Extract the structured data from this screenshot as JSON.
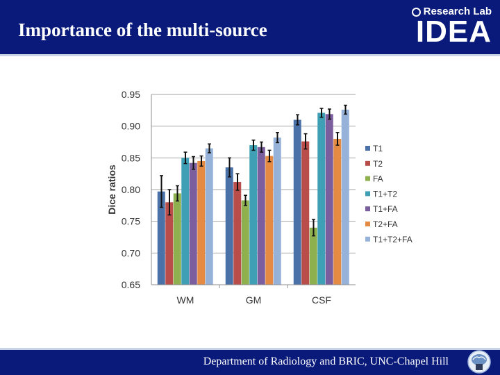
{
  "slide": {
    "title": "Importance of the multi-source",
    "logo_top": "Research Lab",
    "logo_main": "IDEA",
    "footer": "Department of Radiology and BRIC, UNC-Chapel Hill"
  },
  "colors": {
    "header_bg": "#0a1a7a",
    "T1": "#4a72a8",
    "T2": "#b84d4a",
    "FA": "#8fb04f",
    "T1+T2": "#3fa0b5",
    "T1+FA": "#7b5e9e",
    "T2+FA": "#e48a43",
    "T1+T2+FA": "#97b2d8"
  },
  "chart_data": {
    "type": "bar",
    "ylabel": "Dice ratios",
    "xlabel": "",
    "ylim": [
      0.65,
      0.95
    ],
    "yticks": [
      "0.95",
      "0.90",
      "0.85",
      "0.80",
      "0.75",
      "0.70",
      "0.65"
    ],
    "grid": true,
    "legend_position": "right",
    "categories": [
      "WM",
      "GM",
      "CSF"
    ],
    "series": [
      {
        "name": "T1",
        "values": [
          0.797,
          0.835,
          0.91
        ],
        "errors": [
          0.025,
          0.015,
          0.008
        ]
      },
      {
        "name": "T2",
        "values": [
          0.78,
          0.812,
          0.876
        ],
        "errors": [
          0.02,
          0.013,
          0.012
        ]
      },
      {
        "name": "FA",
        "values": [
          0.794,
          0.783,
          0.74
        ],
        "errors": [
          0.012,
          0.008,
          0.013
        ]
      },
      {
        "name": "T1+T2",
        "values": [
          0.85,
          0.87,
          0.921
        ],
        "errors": [
          0.009,
          0.008,
          0.007
        ]
      },
      {
        "name": "T1+FA",
        "values": [
          0.842,
          0.867,
          0.919
        ],
        "errors": [
          0.01,
          0.008,
          0.008
        ]
      },
      {
        "name": "T2+FA",
        "values": [
          0.845,
          0.853,
          0.88
        ],
        "errors": [
          0.008,
          0.009,
          0.01
        ]
      },
      {
        "name": "T1+T2+FA",
        "values": [
          0.865,
          0.882,
          0.926
        ],
        "errors": [
          0.007,
          0.008,
          0.007
        ]
      }
    ]
  }
}
